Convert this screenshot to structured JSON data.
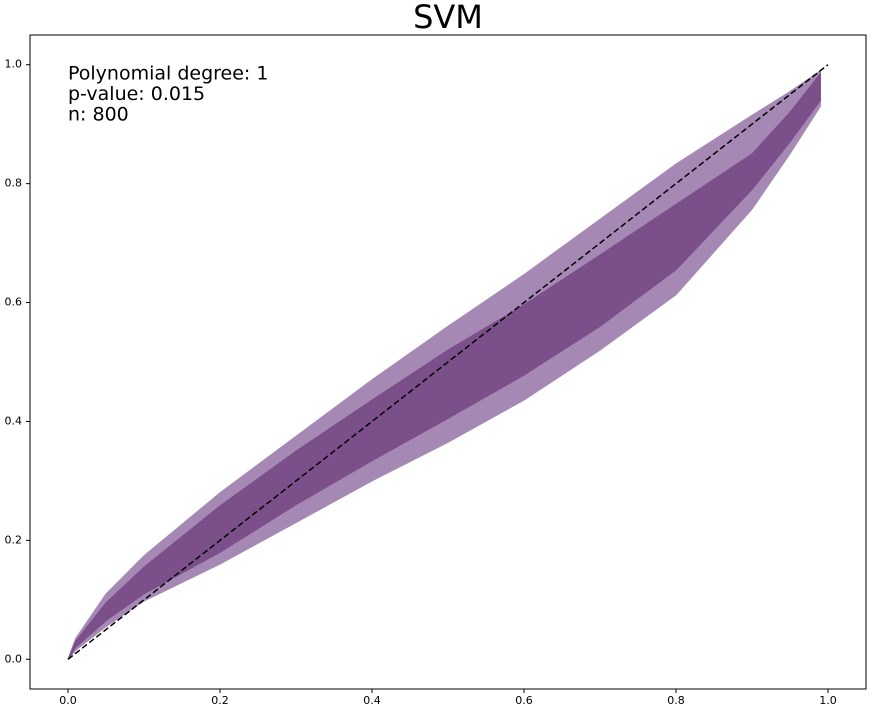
{
  "chart_data": {
    "type": "band",
    "title": "SVM",
    "annotations": [
      "Polynomial degree: 1",
      "p-value: 0.015",
      "n: 800"
    ],
    "x": [
      0,
      0.01,
      0.05,
      0.1,
      0.2,
      0.3,
      0.4,
      0.5,
      0.6,
      0.7,
      0.8,
      0.9,
      0.95,
      0.99
    ],
    "series": [
      {
        "color": "#a688b4",
        "upper": [
          0,
          0.035,
          0.11,
          0.174,
          0.28,
          0.375,
          0.47,
          0.56,
          0.647,
          0.74,
          0.833,
          0.915,
          0.955,
          0.99
        ],
        "lower": [
          0,
          0.015,
          0.055,
          0.098,
          0.16,
          0.23,
          0.3,
          0.365,
          0.436,
          0.52,
          0.613,
          0.757,
          0.85,
          0.93
        ]
      },
      {
        "color": "#7b4f8a",
        "upper": [
          0,
          0.03,
          0.095,
          0.155,
          0.258,
          0.35,
          0.436,
          0.52,
          0.596,
          0.68,
          0.765,
          0.85,
          0.92,
          0.985
        ],
        "lower": [
          0,
          0.02,
          0.065,
          0.11,
          0.18,
          0.26,
          0.334,
          0.405,
          0.478,
          0.56,
          0.655,
          0.79,
          0.87,
          0.94
        ]
      }
    ],
    "diagonal": {
      "x": [
        0,
        1
      ],
      "y": [
        0,
        1
      ],
      "color": "#000000"
    },
    "xlim": [
      -0.05,
      1.05
    ],
    "ylim": [
      -0.05,
      1.05
    ],
    "xticks": [
      {
        "value": 0,
        "label": "0.0"
      },
      0.2,
      0.4,
      0.6,
      0.8,
      {
        "value": 1,
        "label": "1.0"
      }
    ],
    "yticks": [
      {
        "value": 0,
        "label": "0.0"
      },
      0.2,
      0.4,
      0.6,
      0.8,
      {
        "value": 1,
        "label": "1.0"
      }
    ]
  }
}
